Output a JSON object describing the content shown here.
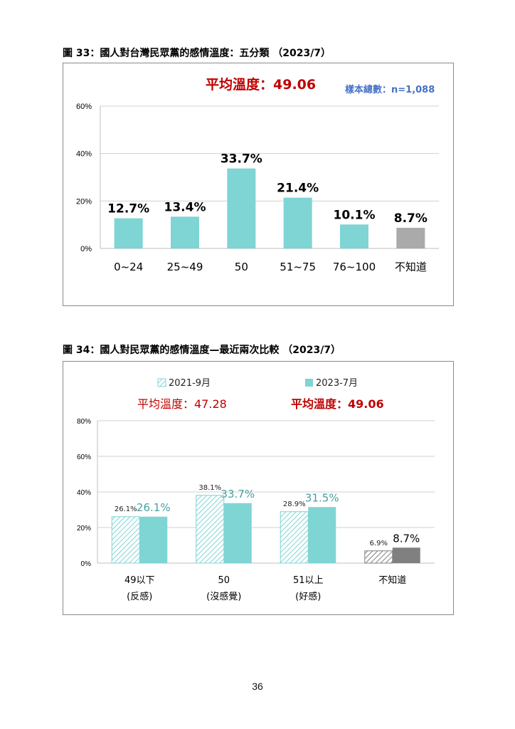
{
  "captions": {
    "fig33": "圖 33：國人對台灣民眾黨的感情溫度：五分類 （2023/7）",
    "fig34": "圖 34：國人對民眾黨的感情溫度—最近兩次比較 （2023/7）"
  },
  "page_number": "36",
  "colors": {
    "teal": "#7fd4d4",
    "gray": "#aaaaaa",
    "dark_gray": "#808080",
    "red": "#c00000",
    "blue": "#4472c4",
    "teal_text": "#4a9fa0"
  },
  "chart_data": [
    {
      "type": "bar",
      "title": "平均溫度：49.06",
      "sample_note": "樣本總數：n=1,088",
      "categories": [
        "0~24",
        "25~49",
        "50",
        "51~75",
        "76~100",
        "不知道"
      ],
      "values": [
        12.7,
        13.4,
        33.7,
        21.4,
        10.1,
        8.7
      ],
      "value_labels": [
        "12.7%",
        "13.4%",
        "33.7%",
        "21.4%",
        "10.1%",
        "8.7%"
      ],
      "y_ticks": [
        "0%",
        "20%",
        "40%",
        "60%"
      ],
      "ylim": [
        0,
        60
      ],
      "grid": true,
      "legend": "none"
    },
    {
      "type": "bar",
      "categories": [
        "49以下",
        "50",
        "51以上",
        "不知道"
      ],
      "category_sublabels": [
        "(反感)",
        "(沒感覺)",
        "(好感)",
        ""
      ],
      "series": [
        {
          "name": "2021-9月",
          "avg_label": "平均溫度：47.28",
          "values": [
            26.1,
            38.1,
            28.9,
            6.9
          ],
          "value_labels": [
            "26.1%",
            "38.1%",
            "28.9%",
            "6.9%"
          ]
        },
        {
          "name": "2023-7月",
          "avg_label": "平均溫度：49.06",
          "values": [
            26.1,
            33.7,
            31.5,
            8.7
          ],
          "value_labels": [
            "26.1%",
            "33.7%",
            "31.5%",
            "8.7%"
          ]
        }
      ],
      "y_ticks": [
        "0%",
        "20%",
        "40%",
        "60%",
        "80%"
      ],
      "ylim": [
        0,
        80
      ],
      "grid": true,
      "legend": "top"
    }
  ]
}
